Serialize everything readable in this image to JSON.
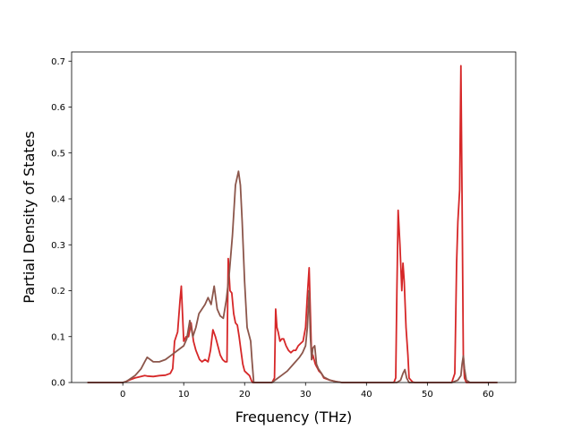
{
  "chart_data": {
    "type": "line",
    "xlabel": "Frequency (THz)",
    "ylabel": "Partial Density of States",
    "xlim": [
      -8.4,
      64.5
    ],
    "ylim": [
      0,
      0.72
    ],
    "x_ticks": [
      0,
      10,
      20,
      30,
      40,
      50,
      60
    ],
    "y_ticks": [
      0.0,
      0.1,
      0.2,
      0.3,
      0.4,
      0.5,
      0.6,
      0.7
    ],
    "x_tick_labels": [
      "0",
      "10",
      "20",
      "30",
      "40",
      "50",
      "60"
    ],
    "y_tick_labels": [
      "0.0",
      "0.1",
      "0.2",
      "0.3",
      "0.4",
      "0.5",
      "0.6",
      "0.7"
    ],
    "grid": false,
    "legend": "none",
    "series": [
      {
        "color": "#d62728",
        "x": [
          -5.8,
          -2,
          0,
          0.5,
          1,
          2,
          3,
          3.6,
          4,
          5,
          6,
          7,
          7.8,
          8.2,
          8.5,
          9,
          9.4,
          9.6,
          10,
          10.4,
          10.8,
          11.2,
          11.6,
          12,
          12.6,
          13,
          13.5,
          14,
          14.4,
          14.8,
          15.2,
          15.6,
          16,
          16.4,
          16.8,
          17.1,
          17.3,
          17.6,
          17.9,
          18.2,
          18.5,
          18.8,
          19.1,
          19.4,
          19.7,
          20,
          20.4,
          20.8,
          21.1,
          21.3,
          21.6,
          22,
          23,
          24.5,
          24.9,
          25.1,
          25.3,
          25.5,
          25.8,
          26.1,
          26.4,
          26.8,
          27.2,
          27.6,
          28,
          28.4,
          28.8,
          29.2,
          29.6,
          30,
          30.3,
          30.6,
          30.8,
          31.0,
          31.2,
          31.4,
          31.6,
          31.8,
          32.0,
          32.2,
          32.6,
          33,
          34,
          35,
          36,
          40,
          44.5,
          44.8,
          45.0,
          45.2,
          45.5,
          45.8,
          46.0,
          46.2,
          46.5,
          46.8,
          47.0,
          47.3,
          47.6,
          48,
          50,
          54,
          54.5,
          54.8,
          55.0,
          55.3,
          55.5,
          55.7,
          55.9,
          56.1,
          56.4,
          57,
          61.5
        ],
        "y": [
          0,
          0,
          0,
          0.002,
          0.005,
          0.01,
          0.013,
          0.015,
          0.014,
          0.013,
          0.015,
          0.016,
          0.02,
          0.03,
          0.09,
          0.11,
          0.18,
          0.21,
          0.09,
          0.1,
          0.1,
          0.13,
          0.09,
          0.07,
          0.05,
          0.045,
          0.05,
          0.045,
          0.07,
          0.115,
          0.1,
          0.08,
          0.06,
          0.05,
          0.045,
          0.045,
          0.27,
          0.2,
          0.195,
          0.15,
          0.13,
          0.125,
          0.1,
          0.07,
          0.04,
          0.025,
          0.02,
          0.015,
          0.005,
          0,
          0,
          0,
          0,
          0,
          0.01,
          0.16,
          0.12,
          0.11,
          0.09,
          0.095,
          0.095,
          0.08,
          0.07,
          0.065,
          0.07,
          0.07,
          0.08,
          0.085,
          0.09,
          0.12,
          0.19,
          0.25,
          0.15,
          0.05,
          0.06,
          0.05,
          0.04,
          0.035,
          0.03,
          0.025,
          0.02,
          0.01,
          0.005,
          0.002,
          0,
          0,
          0,
          0.01,
          0.2,
          0.375,
          0.3,
          0.2,
          0.26,
          0.22,
          0.12,
          0.06,
          0.01,
          0.005,
          0.001,
          0,
          0,
          0,
          0.02,
          0.26,
          0.35,
          0.42,
          0.69,
          0.4,
          0.06,
          0.01,
          0,
          0,
          0
        ]
      },
      {
        "color": "#8c564b",
        "x": [
          -5.8,
          -2,
          0,
          0.5,
          1,
          2,
          3,
          3.6,
          4,
          5,
          6,
          7,
          8,
          9,
          10,
          10.5,
          11,
          11.5,
          12,
          12.5,
          13,
          13.5,
          14,
          14.5,
          15,
          15.5,
          16,
          16.5,
          17,
          17.5,
          18,
          18.5,
          19,
          19.3,
          19.6,
          20,
          20.4,
          20.8,
          21,
          21.2,
          21.5,
          22,
          23,
          24.5,
          25,
          26,
          27,
          28,
          29,
          29.5,
          30,
          30.3,
          30.6,
          30.8,
          31.0,
          31.2,
          31.5,
          31.8,
          32.1,
          32.6,
          33,
          34,
          35,
          36,
          40,
          45,
          45.6,
          46.0,
          46.3,
          46.6,
          47,
          47.5,
          48,
          50,
          54,
          55,
          55.5,
          55.7,
          55.9,
          56.1,
          56.4,
          57,
          61.5
        ],
        "y": [
          0,
          0,
          0,
          0.002,
          0.006,
          0.015,
          0.03,
          0.045,
          0.055,
          0.045,
          0.045,
          0.05,
          0.06,
          0.07,
          0.08,
          0.095,
          0.135,
          0.1,
          0.12,
          0.15,
          0.16,
          0.17,
          0.185,
          0.17,
          0.21,
          0.16,
          0.145,
          0.14,
          0.18,
          0.24,
          0.32,
          0.43,
          0.46,
          0.43,
          0.35,
          0.22,
          0.12,
          0.1,
          0.09,
          0.05,
          0,
          0,
          0,
          0,
          0.005,
          0.015,
          0.025,
          0.04,
          0.055,
          0.065,
          0.08,
          0.12,
          0.2,
          0.1,
          0.05,
          0.075,
          0.08,
          0.04,
          0.03,
          0.02,
          0.012,
          0.005,
          0.002,
          0,
          0,
          0,
          0.005,
          0.02,
          0.028,
          0.01,
          0,
          0,
          0,
          0,
          0,
          0.005,
          0.015,
          0.04,
          0.058,
          0.03,
          0.005,
          0,
          0
        ]
      }
    ]
  }
}
